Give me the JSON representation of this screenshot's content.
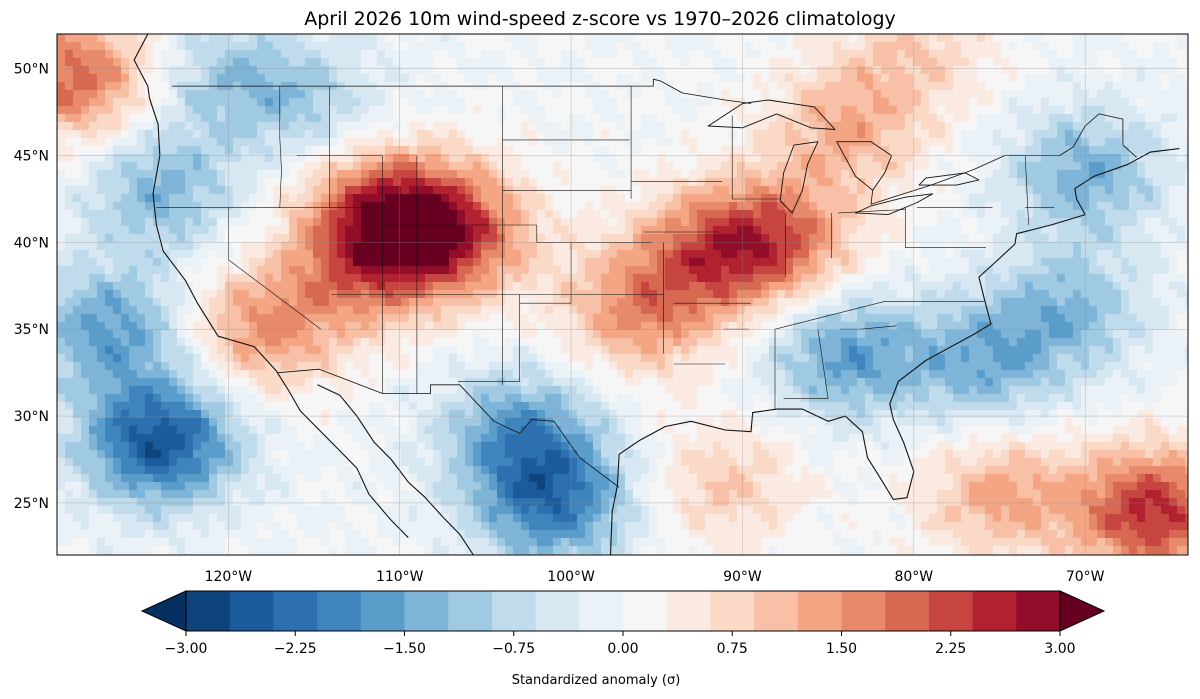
{
  "title": "April 2026 10m wind-speed z-score vs 1970–2026 climatology",
  "map": {
    "type": "filled-contour map",
    "lon_range": [
      -130,
      -64
    ],
    "lat_range": [
      22,
      52
    ],
    "lat_ticks": [
      {
        "value": 50,
        "label": "50°N"
      },
      {
        "value": 45,
        "label": "45°N"
      },
      {
        "value": 40,
        "label": "40°N"
      },
      {
        "value": 35,
        "label": "35°N"
      },
      {
        "value": 30,
        "label": "30°N"
      },
      {
        "value": 25,
        "label": "25°N"
      }
    ],
    "lon_ticks": [
      {
        "value": -120,
        "label": "120°W"
      },
      {
        "value": -110,
        "label": "110°W"
      },
      {
        "value": -100,
        "label": "100°W"
      },
      {
        "value": -90,
        "label": "90°W"
      },
      {
        "value": -80,
        "label": "80°W"
      },
      {
        "value": -70,
        "label": "70°W"
      }
    ],
    "gridlines": true,
    "anomaly_centers": [
      {
        "lon": -107,
        "lat": 40.5,
        "value": 2.2
      },
      {
        "lon": -111,
        "lat": 42,
        "value": 2.0
      },
      {
        "lon": -88,
        "lat": 40,
        "value": 1.8
      },
      {
        "lon": -92,
        "lat": 39.5,
        "value": 1.5
      },
      {
        "lon": -96,
        "lat": 36,
        "value": 1.5
      },
      {
        "lon": -118,
        "lat": 35,
        "value": 1.5
      },
      {
        "lon": -112,
        "lat": 38.5,
        "value": 1.4
      },
      {
        "lon": -84,
        "lat": 46.5,
        "value": 1.2
      },
      {
        "lon": -129,
        "lat": 49.5,
        "value": 2.0
      },
      {
        "lon": -66,
        "lat": 24.5,
        "value": 2.5
      },
      {
        "lon": -75,
        "lat": 25.5,
        "value": 1.3
      },
      {
        "lon": -91,
        "lat": 26,
        "value": 0.9
      },
      {
        "lon": -80,
        "lat": 51,
        "value": 0.8
      },
      {
        "lon": -124,
        "lat": 28.5,
        "value": -2.6
      },
      {
        "lon": -127,
        "lat": 35,
        "value": -1.6
      },
      {
        "lon": -124,
        "lat": 43,
        "value": -1.3
      },
      {
        "lon": -101,
        "lat": 25,
        "value": -2.0
      },
      {
        "lon": -103,
        "lat": 29,
        "value": -1.6
      },
      {
        "lon": -84,
        "lat": 33.5,
        "value": -1.6
      },
      {
        "lon": -76,
        "lat": 33,
        "value": -1.3
      },
      {
        "lon": -71,
        "lat": 36,
        "value": -1.2
      },
      {
        "lon": -70,
        "lat": 44,
        "value": -1.4
      },
      {
        "lon": -120,
        "lat": 49.5,
        "value": -1.0
      },
      {
        "lon": -115,
        "lat": 48,
        "value": -0.8
      }
    ]
  },
  "colorbar": {
    "label": "Standardized anomaly (σ)",
    "min": -3.0,
    "max": 3.0,
    "step": 0.25,
    "extend": "both",
    "tick_labels": [
      "−3.00",
      "−2.25",
      "−1.50",
      "−0.75",
      "0.00",
      "0.75",
      "1.50",
      "2.25",
      "3.00"
    ],
    "colormap": "RdBu_r",
    "colors": [
      "#053061",
      "#0f437b",
      "#1b5a9b",
      "#2c70b0",
      "#3e84bd",
      "#5a9dcb",
      "#7eb4d7",
      "#a0c9e2",
      "#c0dbeb",
      "#d8e8f2",
      "#eaf2f7",
      "#f6f6f6",
      "#faeae2",
      "#fbd9c7",
      "#f8c0a6",
      "#f4a583",
      "#e78a6b",
      "#d76953",
      "#c64540",
      "#b2212f",
      "#920d2a",
      "#670020"
    ]
  }
}
